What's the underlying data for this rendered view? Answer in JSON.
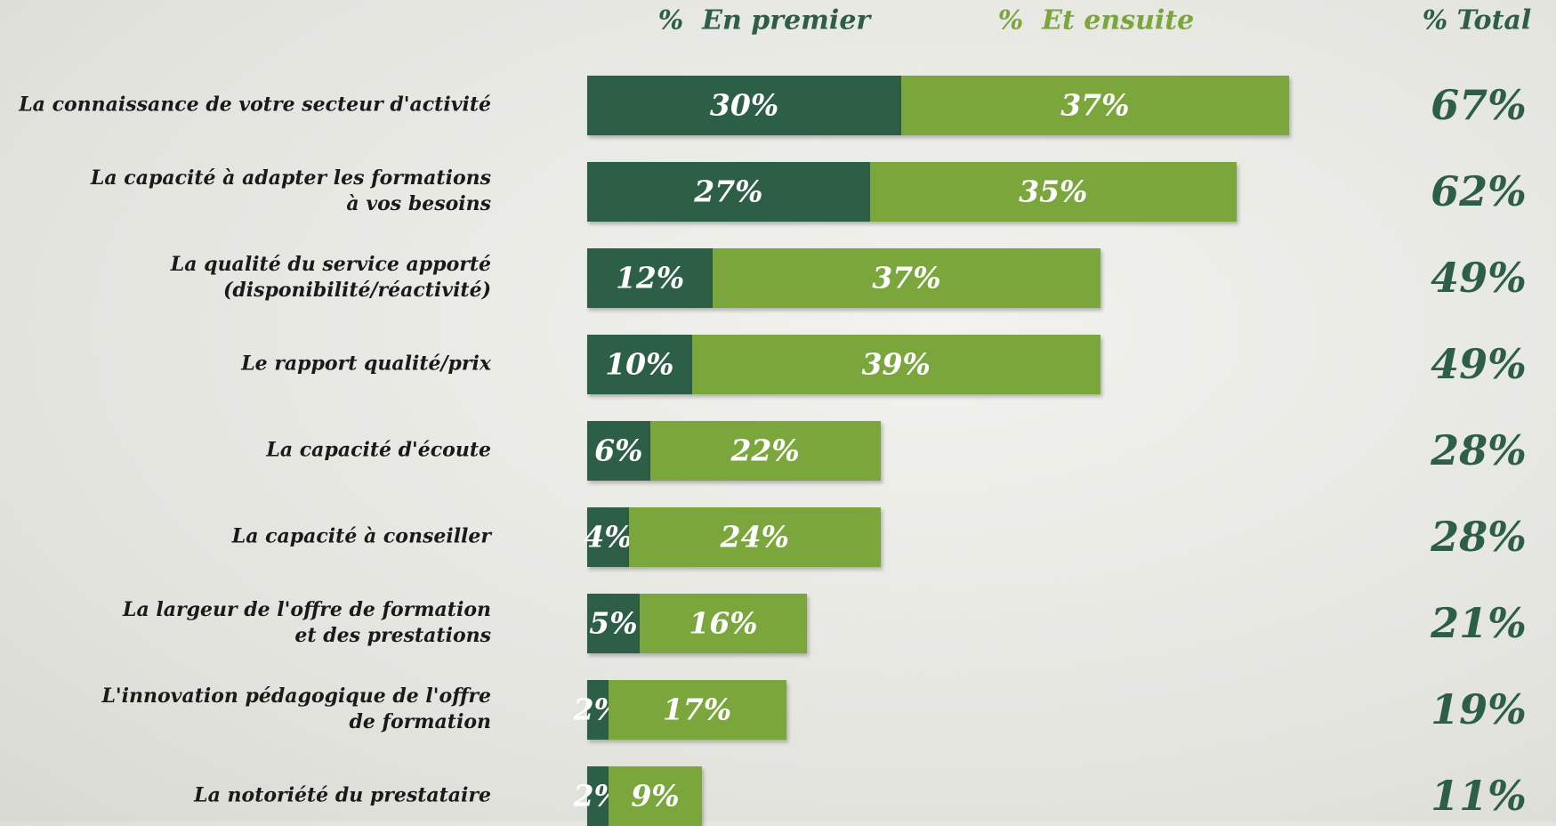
{
  "chart_data": {
    "type": "stacked-bar-horizontal",
    "categories": [
      "La connaissance de votre secteur d'activité",
      "La capacité à adapter les formations\nà vos besoins",
      "La qualité du service apporté\n(disponibilité/réactivité)",
      "Le rapport qualité/prix",
      "La capacité d'écoute",
      "La capacité à conseiller",
      "La largeur de l'offre de formation\net des prestations",
      "L'innovation pédagogique de l'offre\nde formation",
      "La notoriété du prestataire"
    ],
    "series": [
      {
        "name": "%  En premier",
        "color": "#2d5e46",
        "values": [
          30,
          27,
          12,
          10,
          6,
          4,
          5,
          2,
          2
        ],
        "value_labels": [
          "30%",
          "27%",
          "12%",
          "10%",
          "6%",
          "4%",
          "5%",
          "2%",
          "2%"
        ]
      },
      {
        "name": "%  Et ensuite",
        "color": "#7aa63c",
        "values": [
          37,
          35,
          37,
          39,
          22,
          24,
          16,
          17,
          9
        ],
        "value_labels": [
          "37%",
          "35%",
          "37%",
          "39%",
          "22%",
          "24%",
          "16%",
          "17%",
          "9%"
        ]
      }
    ],
    "total_header": "% Total",
    "totals": [
      67,
      62,
      49,
      49,
      28,
      28,
      21,
      19,
      11
    ],
    "totals_labels": [
      "67%",
      "62%",
      "49%",
      "49%",
      "28%",
      "28%",
      "21%",
      "19%",
      "11%"
    ]
  }
}
